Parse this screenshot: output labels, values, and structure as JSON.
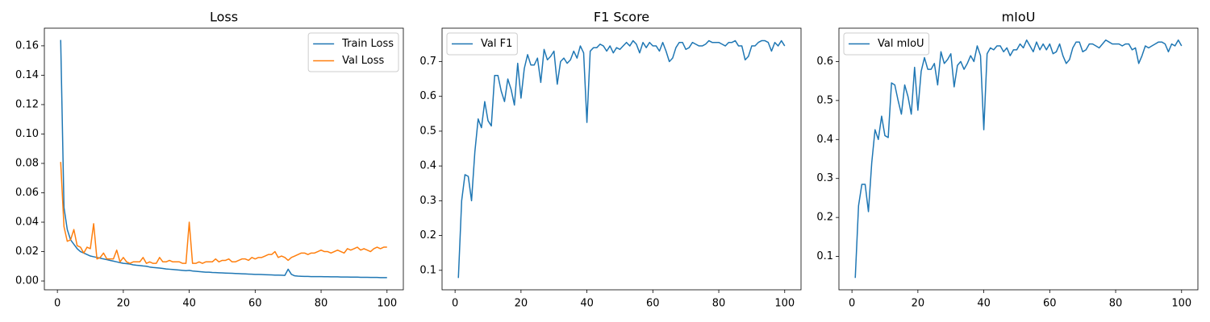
{
  "chart_data": [
    {
      "type": "line",
      "title": "Loss",
      "legend": "upper right",
      "grid": false,
      "x": [
        1,
        2,
        3,
        4,
        5,
        6,
        7,
        8,
        9,
        10,
        11,
        12,
        13,
        14,
        15,
        16,
        17,
        18,
        19,
        20,
        21,
        22,
        23,
        24,
        25,
        26,
        27,
        28,
        29,
        30,
        31,
        32,
        33,
        34,
        35,
        36,
        37,
        38,
        39,
        40,
        41,
        42,
        43,
        44,
        45,
        46,
        47,
        48,
        49,
        50,
        51,
        52,
        53,
        54,
        55,
        56,
        57,
        58,
        59,
        60,
        61,
        62,
        63,
        64,
        65,
        66,
        67,
        68,
        69,
        70,
        71,
        72,
        73,
        74,
        75,
        76,
        77,
        78,
        79,
        80,
        81,
        82,
        83,
        84,
        85,
        86,
        87,
        88,
        89,
        90,
        91,
        92,
        93,
        94,
        95,
        96,
        97,
        98,
        99,
        100
      ],
      "series": [
        {
          "name": "Train Loss",
          "color": "#1f77b4",
          "values": [
            0.164,
            0.05,
            0.035,
            0.028,
            0.025,
            0.022,
            0.02,
            0.019,
            0.018,
            0.017,
            0.0165,
            0.016,
            0.0155,
            0.015,
            0.0145,
            0.014,
            0.0135,
            0.013,
            0.0125,
            0.012,
            0.0118,
            0.0115,
            0.011,
            0.0107,
            0.0105,
            0.0102,
            0.01,
            0.0095,
            0.0092,
            0.009,
            0.0088,
            0.0085,
            0.0082,
            0.008,
            0.0078,
            0.0076,
            0.0074,
            0.0072,
            0.007,
            0.0072,
            0.0068,
            0.0066,
            0.0064,
            0.0062,
            0.006,
            0.006,
            0.0058,
            0.0057,
            0.0056,
            0.0055,
            0.0054,
            0.0053,
            0.0052,
            0.0051,
            0.005,
            0.0049,
            0.0048,
            0.0047,
            0.0046,
            0.0045,
            0.0045,
            0.0044,
            0.0043,
            0.0042,
            0.0041,
            0.004,
            0.004,
            0.0039,
            0.0038,
            0.008,
            0.0045,
            0.0035,
            0.0033,
            0.0032,
            0.0031,
            0.0031,
            0.003,
            0.003,
            0.003,
            0.003,
            0.0029,
            0.0029,
            0.0028,
            0.0028,
            0.0028,
            0.0027,
            0.0027,
            0.0027,
            0.0026,
            0.0026,
            0.0026,
            0.0025,
            0.0025,
            0.0025,
            0.0024,
            0.0024,
            0.0024,
            0.0023,
            0.0023,
            0.0023
          ]
        },
        {
          "name": "Val Loss",
          "color": "#ff7f0e",
          "values": [
            0.081,
            0.037,
            0.027,
            0.028,
            0.035,
            0.024,
            0.023,
            0.019,
            0.023,
            0.022,
            0.039,
            0.015,
            0.016,
            0.019,
            0.015,
            0.015,
            0.015,
            0.021,
            0.013,
            0.016,
            0.013,
            0.012,
            0.013,
            0.013,
            0.013,
            0.016,
            0.012,
            0.013,
            0.012,
            0.012,
            0.016,
            0.013,
            0.013,
            0.014,
            0.013,
            0.013,
            0.013,
            0.012,
            0.012,
            0.04,
            0.012,
            0.012,
            0.013,
            0.012,
            0.013,
            0.013,
            0.013,
            0.015,
            0.013,
            0.014,
            0.014,
            0.015,
            0.013,
            0.013,
            0.014,
            0.015,
            0.015,
            0.014,
            0.016,
            0.015,
            0.016,
            0.016,
            0.017,
            0.018,
            0.018,
            0.02,
            0.016,
            0.017,
            0.016,
            0.014,
            0.016,
            0.017,
            0.018,
            0.019,
            0.019,
            0.018,
            0.019,
            0.019,
            0.02,
            0.021,
            0.02,
            0.02,
            0.019,
            0.02,
            0.021,
            0.02,
            0.019,
            0.022,
            0.021,
            0.022,
            0.023,
            0.021,
            0.022,
            0.021,
            0.02,
            0.022,
            0.023,
            0.022,
            0.023,
            0.023
          ]
        }
      ],
      "xlim": [
        -3.95,
        104.95
      ],
      "xticks": [
        0,
        20,
        40,
        60,
        80,
        100
      ],
      "ylim": [
        -0.006,
        0.172
      ],
      "yticks": [
        {
          "value": 0,
          "label": "0.00"
        },
        {
          "value": 0.02,
          "label": "0.02"
        },
        {
          "value": 0.04,
          "label": "0.04"
        },
        {
          "value": 0.06,
          "label": "0.06"
        },
        {
          "value": 0.08,
          "label": "0.08"
        },
        {
          "value": 0.1,
          "label": "0.10"
        },
        {
          "value": 0.12,
          "label": "0.12"
        },
        {
          "value": 0.14,
          "label": "0.14"
        },
        {
          "value": 0.16,
          "label": "0.16"
        }
      ]
    },
    {
      "type": "line",
      "title": "F1 Score",
      "legend": "upper left",
      "grid": false,
      "x": [
        1,
        2,
        3,
        4,
        5,
        6,
        7,
        8,
        9,
        10,
        11,
        12,
        13,
        14,
        15,
        16,
        17,
        18,
        19,
        20,
        21,
        22,
        23,
        24,
        25,
        26,
        27,
        28,
        29,
        30,
        31,
        32,
        33,
        34,
        35,
        36,
        37,
        38,
        39,
        40,
        41,
        42,
        43,
        44,
        45,
        46,
        47,
        48,
        49,
        50,
        51,
        52,
        53,
        54,
        55,
        56,
        57,
        58,
        59,
        60,
        61,
        62,
        63,
        64,
        65,
        66,
        67,
        68,
        69,
        70,
        71,
        72,
        73,
        74,
        75,
        76,
        77,
        78,
        79,
        80,
        81,
        82,
        83,
        84,
        85,
        86,
        87,
        88,
        89,
        90,
        91,
        92,
        93,
        94,
        95,
        96,
        97,
        98,
        99,
        100
      ],
      "series": [
        {
          "name": "Val F1",
          "color": "#1f77b4",
          "values": [
            0.078,
            0.3,
            0.375,
            0.37,
            0.3,
            0.44,
            0.535,
            0.51,
            0.585,
            0.53,
            0.515,
            0.66,
            0.66,
            0.615,
            0.585,
            0.65,
            0.62,
            0.575,
            0.695,
            0.595,
            0.68,
            0.72,
            0.69,
            0.69,
            0.71,
            0.64,
            0.735,
            0.705,
            0.715,
            0.73,
            0.635,
            0.7,
            0.71,
            0.695,
            0.705,
            0.73,
            0.71,
            0.745,
            0.725,
            0.525,
            0.73,
            0.74,
            0.74,
            0.75,
            0.745,
            0.73,
            0.745,
            0.725,
            0.74,
            0.735,
            0.745,
            0.755,
            0.745,
            0.76,
            0.75,
            0.725,
            0.755,
            0.74,
            0.755,
            0.745,
            0.745,
            0.73,
            0.755,
            0.73,
            0.7,
            0.71,
            0.74,
            0.755,
            0.755,
            0.735,
            0.74,
            0.755,
            0.75,
            0.745,
            0.745,
            0.75,
            0.76,
            0.755,
            0.755,
            0.755,
            0.75,
            0.745,
            0.755,
            0.755,
            0.76,
            0.745,
            0.745,
            0.705,
            0.715,
            0.745,
            0.745,
            0.755,
            0.76,
            0.76,
            0.755,
            0.73,
            0.755,
            0.745,
            0.76,
            0.745
          ]
        }
      ],
      "xlim": [
        -3.95,
        104.95
      ],
      "xticks": [
        0,
        20,
        40,
        60,
        80,
        100
      ],
      "ylim": [
        0.044,
        0.796
      ],
      "yticks": [
        0.1,
        0.2,
        0.3,
        0.4,
        0.5,
        0.6,
        0.7
      ]
    },
    {
      "type": "line",
      "title": "mIoU",
      "legend": "upper left",
      "grid": false,
      "x": [
        1,
        2,
        3,
        4,
        5,
        6,
        7,
        8,
        9,
        10,
        11,
        12,
        13,
        14,
        15,
        16,
        17,
        18,
        19,
        20,
        21,
        22,
        23,
        24,
        25,
        26,
        27,
        28,
        29,
        30,
        31,
        32,
        33,
        34,
        35,
        36,
        37,
        38,
        39,
        40,
        41,
        42,
        43,
        44,
        45,
        46,
        47,
        48,
        49,
        50,
        51,
        52,
        53,
        54,
        55,
        56,
        57,
        58,
        59,
        60,
        61,
        62,
        63,
        64,
        65,
        66,
        67,
        68,
        69,
        70,
        71,
        72,
        73,
        74,
        75,
        76,
        77,
        78,
        79,
        80,
        81,
        82,
        83,
        84,
        85,
        86,
        87,
        88,
        89,
        90,
        91,
        92,
        93,
        94,
        95,
        96,
        97,
        98,
        99,
        100
      ],
      "series": [
        {
          "name": "Val mIoU",
          "color": "#1f77b4",
          "values": [
            0.045,
            0.23,
            0.285,
            0.285,
            0.215,
            0.34,
            0.425,
            0.4,
            0.46,
            0.41,
            0.405,
            0.545,
            0.54,
            0.5,
            0.465,
            0.54,
            0.51,
            0.465,
            0.585,
            0.475,
            0.575,
            0.61,
            0.58,
            0.58,
            0.595,
            0.54,
            0.625,
            0.595,
            0.605,
            0.62,
            0.535,
            0.59,
            0.6,
            0.58,
            0.595,
            0.615,
            0.6,
            0.64,
            0.615,
            0.425,
            0.62,
            0.635,
            0.63,
            0.64,
            0.64,
            0.625,
            0.635,
            0.615,
            0.63,
            0.63,
            0.645,
            0.635,
            0.655,
            0.64,
            0.625,
            0.65,
            0.63,
            0.645,
            0.63,
            0.645,
            0.62,
            0.625,
            0.645,
            0.615,
            0.595,
            0.605,
            0.635,
            0.65,
            0.65,
            0.625,
            0.63,
            0.645,
            0.645,
            0.64,
            0.635,
            0.645,
            0.655,
            0.65,
            0.645,
            0.645,
            0.645,
            0.64,
            0.645,
            0.645,
            0.63,
            0.635,
            0.595,
            0.615,
            0.64,
            0.635,
            0.64,
            0.645,
            0.65,
            0.65,
            0.645,
            0.625,
            0.645,
            0.64,
            0.655,
            0.64
          ]
        }
      ],
      "xlim": [
        -3.95,
        104.95
      ],
      "xticks": [
        0,
        20,
        40,
        60,
        80,
        100
      ],
      "ylim": [
        0.0145,
        0.6855
      ],
      "yticks": [
        0.1,
        0.2,
        0.3,
        0.4,
        0.5,
        0.6
      ]
    }
  ]
}
